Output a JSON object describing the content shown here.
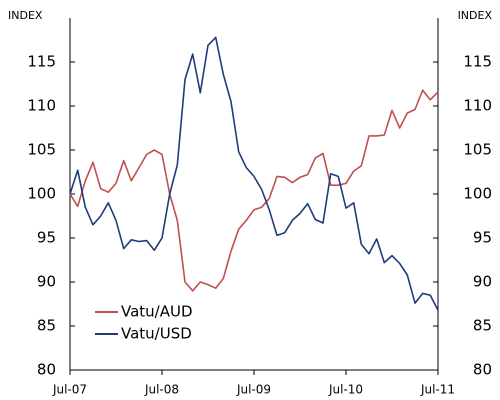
{
  "chart_data": {
    "type": "line",
    "ylabel": "INDEX",
    "y2label": "INDEX",
    "categories": [
      "Jul-07",
      null,
      null,
      null,
      null,
      null,
      null,
      null,
      null,
      null,
      null,
      null,
      "Jul-08",
      null,
      null,
      null,
      null,
      null,
      null,
      null,
      null,
      null,
      null,
      null,
      "Jul-09",
      null,
      null,
      null,
      null,
      null,
      null,
      null,
      null,
      null,
      null,
      null,
      "Jul-10",
      null,
      null,
      null,
      null,
      null,
      null,
      null,
      null,
      null,
      null,
      null,
      "Jul-11"
    ],
    "series": [
      {
        "name": "Vatu/AUD",
        "color": "#c0504d",
        "values": [
          100,
          98.6,
          101.5,
          103.6,
          100.6,
          100.2,
          101.2,
          103.8,
          101.5,
          103,
          104.5,
          105,
          104.5,
          100,
          97,
          90,
          89,
          90,
          89.7,
          89.3,
          90.4,
          93.5,
          96,
          97,
          98.2,
          98.5,
          99.5,
          102,
          101.9,
          101.3,
          101.9,
          102.2,
          104.1,
          104.6,
          101,
          101,
          101.2,
          102.6,
          103.2,
          106.6,
          106.6,
          106.7,
          109.5,
          107.5,
          109.2,
          109.6,
          111.8,
          110.7,
          111.6
        ]
      },
      {
        "name": "Vatu/USD",
        "color": "#1f3d7a",
        "values": [
          100,
          102.7,
          98.5,
          96.5,
          97.5,
          99,
          97,
          93.8,
          94.8,
          94.6,
          94.7,
          93.6,
          95,
          100,
          103.3,
          113,
          115.9,
          111.5,
          116.9,
          117.8,
          113.6,
          110.5,
          104.8,
          103,
          102,
          100.5,
          98.2,
          95.3,
          95.6,
          97,
          97.8,
          98.9,
          97.1,
          96.7,
          102.3,
          102,
          98.4,
          99,
          94.3,
          93.2,
          94.9,
          92.2,
          93,
          92.1,
          90.8,
          87.6,
          88.7,
          88.5,
          86.8
        ]
      }
    ],
    "ylim": [
      80,
      120
    ],
    "yticks": [
      80,
      85,
      90,
      95,
      100,
      105,
      110,
      115
    ],
    "y2lim": [
      80,
      120
    ],
    "y2ticks": [
      80,
      85,
      90,
      95,
      100,
      105,
      110,
      115
    ],
    "grid": false,
    "legend": "lower left"
  }
}
